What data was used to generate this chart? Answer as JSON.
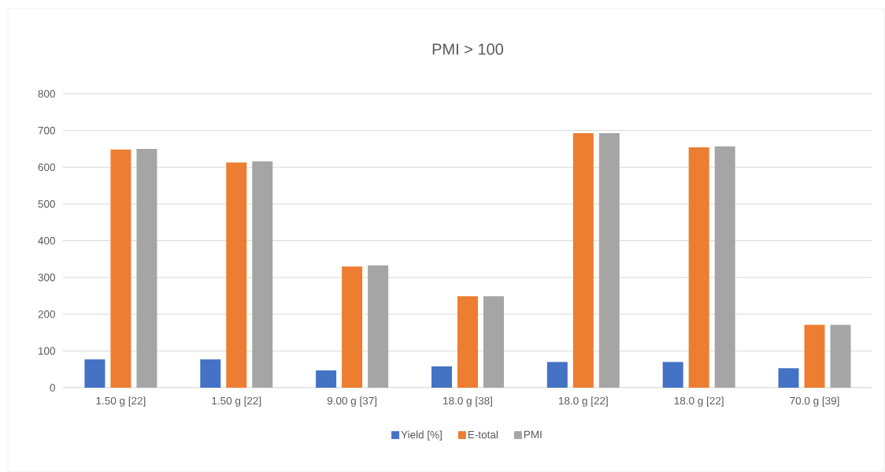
{
  "chart_data": {
    "type": "bar",
    "title": "PMI > 100",
    "categories": [
      "1.50 g [22]",
      "1.50 g [22]",
      "9.00 g [37]",
      "18.0 g [38]",
      "18.0 g [22]",
      "18.0 g [22]",
      "70.0 g [39]"
    ],
    "series": [
      {
        "name": "Yield  [%]",
        "color": "#4472c4",
        "values": [
          77,
          77,
          47,
          58,
          70,
          70,
          53
        ]
      },
      {
        "name": "E-total",
        "color": "#ed7d31",
        "values": [
          648,
          613,
          330,
          249,
          693,
          654,
          171
        ]
      },
      {
        "name": "PMI",
        "color": "#a5a5a5",
        "values": [
          650,
          616,
          333,
          249,
          693,
          657,
          171
        ]
      }
    ],
    "ylim": [
      0,
      800
    ],
    "yticks": [
      0,
      100,
      200,
      300,
      400,
      500,
      600,
      700,
      800
    ],
    "grid": "y",
    "legend": "bottom"
  }
}
